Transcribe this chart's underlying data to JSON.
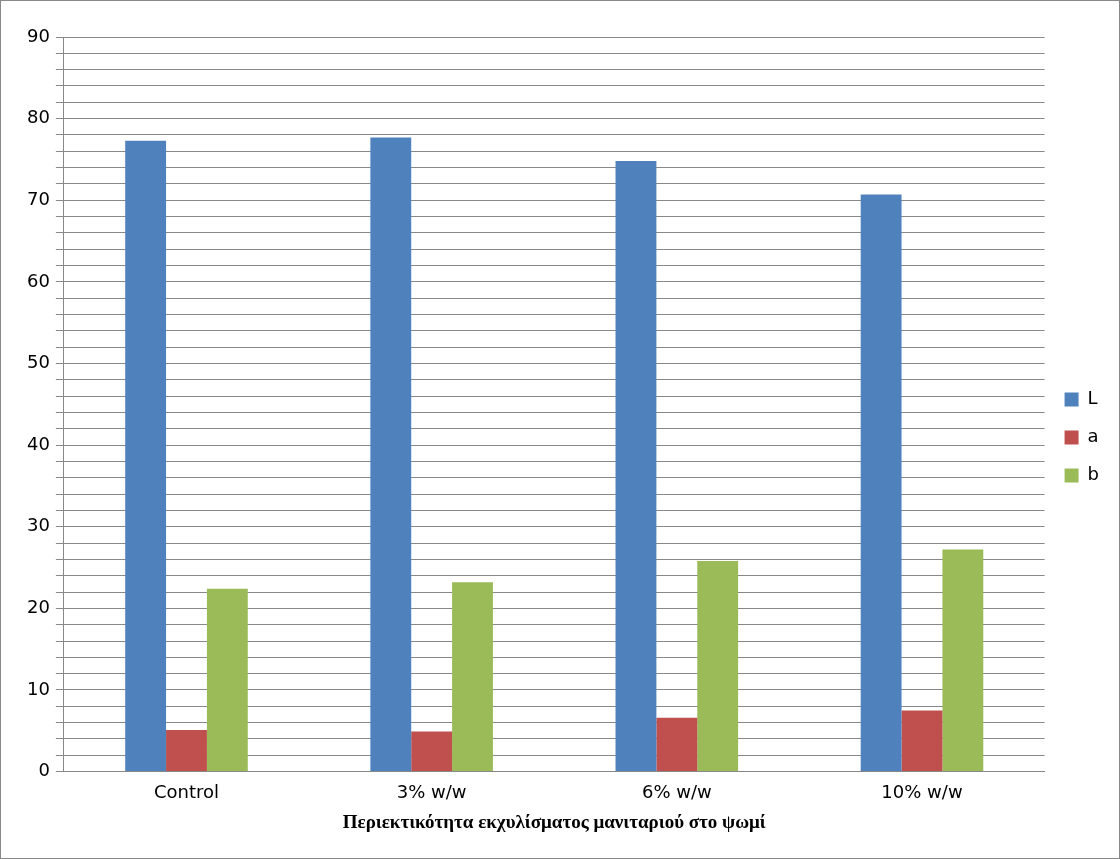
{
  "chart_data": {
    "type": "bar",
    "xlabel": "Περιεκτικότητα εκχυλίσματος μανιταριού στο ψωμί",
    "categories": [
      "Control",
      "3% w/w",
      "6% w/w",
      "10% w/w"
    ],
    "series": [
      {
        "name": "L",
        "color": "#4f81bd",
        "values": [
          77.3,
          77.7,
          74.8,
          70.7
        ]
      },
      {
        "name": "a",
        "color": "#c0504d",
        "values": [
          5.1,
          4.9,
          6.6,
          7.5
        ]
      },
      {
        "name": "b",
        "color": "#9bbb59",
        "values": [
          22.4,
          23.2,
          25.8,
          27.2
        ]
      }
    ],
    "ylim": [
      0,
      90
    ],
    "yticks": [
      0,
      {
        "value": 2,
        "label": null
      },
      {
        "value": 4,
        "label": null
      },
      {
        "value": 6,
        "label": null
      },
      {
        "value": 8,
        "label": null
      },
      10,
      {
        "value": 12,
        "label": null
      },
      {
        "value": 14,
        "label": null
      },
      {
        "value": 16,
        "label": null
      },
      {
        "value": 18,
        "label": null
      },
      20,
      {
        "value": 22,
        "label": null
      },
      {
        "value": 24,
        "label": null
      },
      {
        "value": 26,
        "label": null
      },
      {
        "value": 28,
        "label": null
      },
      30,
      {
        "value": 32,
        "label": null
      },
      {
        "value": 34,
        "label": null
      },
      {
        "value": 36,
        "label": null
      },
      {
        "value": 38,
        "label": null
      },
      40,
      {
        "value": 42,
        "label": null
      },
      {
        "value": 44,
        "label": null
      },
      {
        "value": 46,
        "label": null
      },
      {
        "value": 48,
        "label": null
      },
      50,
      {
        "value": 52,
        "label": null
      },
      {
        "value": 54,
        "label": null
      },
      {
        "value": 56,
        "label": null
      },
      {
        "value": 58,
        "label": null
      },
      60,
      {
        "value": 62,
        "label": null
      },
      {
        "value": 64,
        "label": null
      },
      {
        "value": 66,
        "label": null
      },
      {
        "value": 68,
        "label": null
      },
      70,
      {
        "value": 72,
        "label": null
      },
      {
        "value": 74,
        "label": null
      },
      {
        "value": 76,
        "label": null
      },
      {
        "value": 78,
        "label": null
      },
      80,
      {
        "value": 82,
        "label": null
      },
      {
        "value": 84,
        "label": null
      },
      {
        "value": 86,
        "label": null
      },
      {
        "value": 88,
        "label": null
      },
      90
    ],
    "grid": "y",
    "legend": "right"
  }
}
